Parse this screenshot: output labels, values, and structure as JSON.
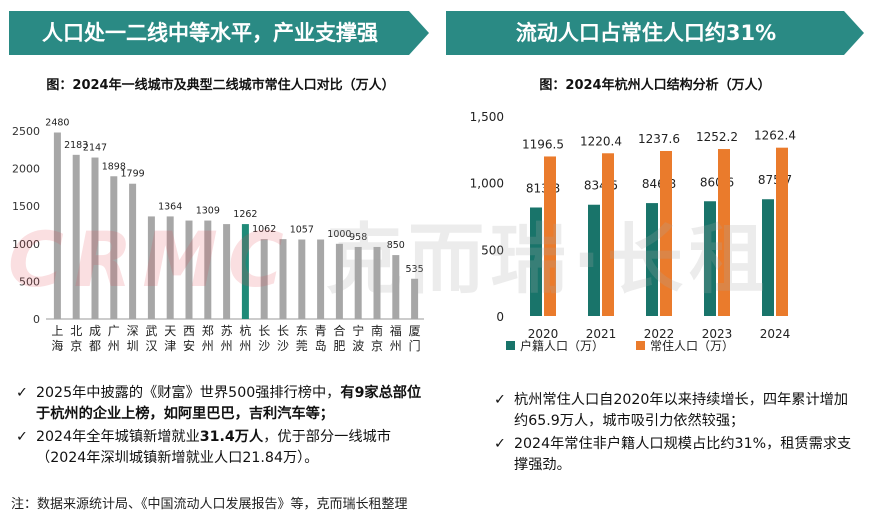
{
  "colors": {
    "banner": "#2a8a84",
    "bar_gray": "#a7a7a7",
    "bar_teal": "#1f8a78",
    "bar_orange": "#ea7b2c",
    "bar_tealdark": "#19746a"
  },
  "left": {
    "banner": "人口处一二线中等水平，产业支撑强",
    "subtitle": "图：2024年一线城市及典型二线城市常住人口对比（万人）",
    "bullets": [
      {
        "pre": "2025年中披露的《财富》世界500强排行榜中，",
        "bold": "有9家总部位于杭州的企业上榜，如阿里巴巴，吉利汽车等；",
        "post": ""
      },
      {
        "pre": "2024年全年城镇新增就业",
        "bold": "31.4万人",
        "post": "，优于部分一线城市（2024年深圳城镇新增就业人口21.84万）。"
      }
    ]
  },
  "right": {
    "banner": "流动人口占常住人口约31%",
    "subtitle": "图：2024年杭州人口结构分析（万人）",
    "bullets": [
      {
        "pre": "杭州常住人口自2020年以来持续增长，四年累计增加约65.9万人，城市吸引力依然较强；",
        "bold": "",
        "post": ""
      },
      {
        "pre": "2024年常住非户籍人口规模占比约31%，租赁需求支撑强劲。",
        "bold": "",
        "post": ""
      }
    ]
  },
  "watermark": {
    "logo": "CRMC",
    "text": "克而瑞·长租"
  },
  "footnote": "注：数据来源统计局、《中国流动人口发展报告》等，克而瑞长租整理",
  "check_mark": "✓",
  "chart_data": [
    {
      "type": "bar",
      "title": "图：2024年一线城市及典型二线城市常住人口对比（万人）",
      "categories": [
        "上海",
        "北京",
        "成都",
        "广州",
        "深圳",
        "武汉",
        "天津",
        "西安",
        "郑州",
        "苏州",
        "杭州",
        "长沙",
        "长沙",
        "东莞",
        "青岛",
        "合肥",
        "宁波",
        "南京",
        "福州",
        "厦门"
      ],
      "values": [
        2480,
        2183,
        2147,
        1898,
        1799,
        1364,
        1364,
        1309,
        1309,
        1262,
        1262,
        1062,
        1062,
        1057,
        1057,
        1000,
        958,
        958,
        850,
        535
      ],
      "labels": [
        "2480",
        "2183",
        "2147",
        "1898",
        "1799",
        "",
        "1364",
        "",
        "1309",
        "",
        "1262",
        "1062",
        "",
        "1057",
        "",
        "1000",
        "958",
        "",
        "850",
        "535"
      ],
      "highlight_index": 10,
      "ylim": [
        0,
        2500
      ],
      "yticks": [
        0,
        500,
        1000,
        1500,
        2000,
        2500
      ],
      "xlabel": "",
      "ylabel": ""
    },
    {
      "type": "bar",
      "title": "图：2024年杭州人口结构分析（万人）",
      "categories": [
        "2020",
        "2021",
        "2022",
        "2023",
        "2024"
      ],
      "series": [
        {
          "name": "户籍人口（万）",
          "values": [
            813.8,
            834.5,
            846.8,
            860.6,
            875.7
          ]
        },
        {
          "name": "常住人口（万）",
          "values": [
            1196.5,
            1220.4,
            1237.6,
            1252.2,
            1262.4
          ]
        }
      ],
      "value_labels": {
        "户籍人口（万）": [
          "813.8",
          "834.5",
          "846.8",
          "860.6",
          "875.7"
        ],
        "常住人口（万）": [
          "1196.5",
          "1220.4",
          "1237.6",
          "1252.2",
          "1262.4"
        ]
      },
      "ylim": [
        0,
        1500
      ],
      "yticks": [
        0,
        500,
        1000,
        1500
      ],
      "ytick_labels": [
        "0",
        "500",
        "1,000",
        "1,500"
      ],
      "legend_position": "bottom",
      "xlabel": "",
      "ylabel": ""
    }
  ]
}
